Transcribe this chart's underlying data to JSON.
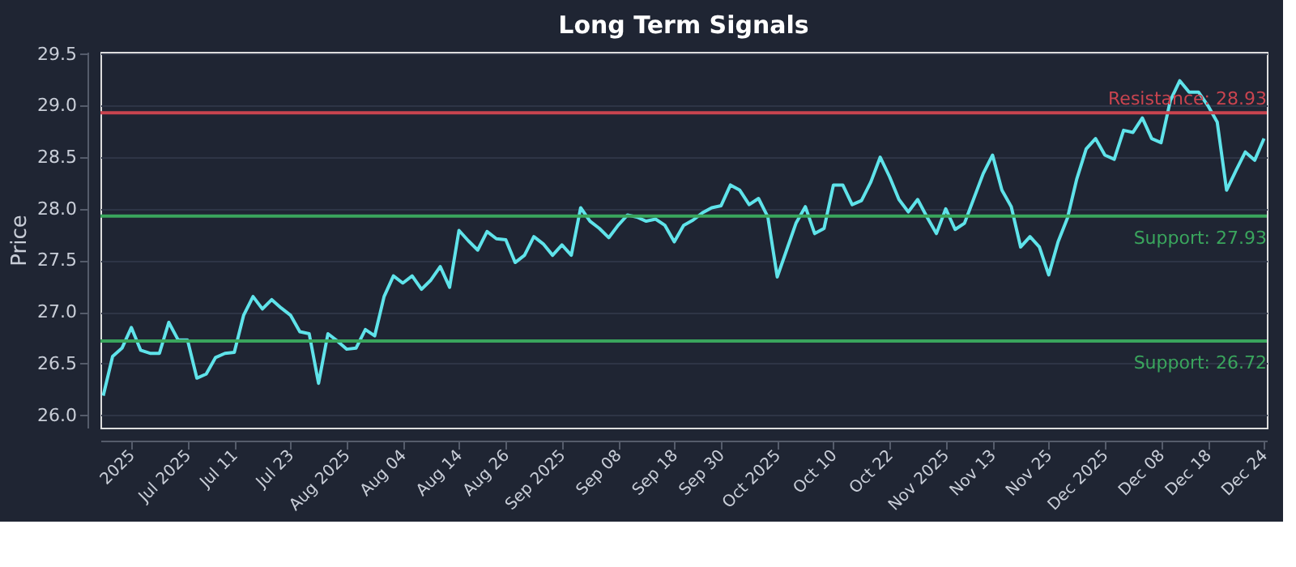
{
  "chart_data": {
    "type": "line",
    "title": "Long Term Signals",
    "ylabel": "Price",
    "categories": [
      null,
      null,
      null,
      "2025",
      null,
      null,
      null,
      null,
      null,
      "Jul 2025",
      null,
      null,
      null,
      null,
      "Jul 11",
      null,
      null,
      null,
      null,
      null,
      "Jul 23",
      null,
      null,
      null,
      null,
      null,
      "Aug 2025",
      null,
      null,
      null,
      null,
      null,
      "Aug 04",
      null,
      null,
      null,
      null,
      null,
      "Aug 14",
      null,
      null,
      null,
      null,
      "Aug 26",
      null,
      null,
      null,
      null,
      null,
      "Sep 2025",
      null,
      null,
      null,
      null,
      null,
      "Sep 08",
      null,
      null,
      null,
      null,
      null,
      "Sep 18",
      null,
      null,
      null,
      null,
      "Sep 30",
      null,
      null,
      null,
      null,
      null,
      "Oct 2025",
      null,
      null,
      null,
      null,
      null,
      "Oct 10",
      null,
      null,
      null,
      null,
      null,
      "Oct 22",
      null,
      null,
      null,
      null,
      null,
      "Nov 2025",
      null,
      null,
      null,
      null,
      "Nov 13",
      null,
      null,
      null,
      null,
      null,
      "Nov 25",
      null,
      null,
      null,
      null,
      null,
      "Dec 2025",
      null,
      null,
      null,
      null,
      null,
      "Dec 08",
      null,
      null,
      null,
      null,
      "Dec 18",
      null,
      null,
      null,
      null,
      null,
      "Dec 24"
    ],
    "series": [
      {
        "color": "#5fe3ea",
        "values": [
          26.19,
          26.57,
          26.65,
          26.85,
          26.63,
          26.6,
          26.6,
          26.9,
          26.73,
          26.73,
          26.36,
          26.4,
          26.56,
          26.6,
          26.61,
          26.97,
          27.15,
          27.03,
          27.12,
          27.04,
          26.97,
          26.81,
          26.79,
          26.31,
          26.79,
          26.72,
          26.64,
          26.65,
          26.83,
          26.77,
          27.15,
          27.35,
          27.28,
          27.35,
          27.22,
          27.31,
          27.44,
          27.24,
          27.79,
          27.69,
          27.6,
          27.78,
          27.71,
          27.7,
          27.48,
          27.55,
          27.73,
          27.66,
          27.55,
          27.65,
          27.55,
          28.01,
          27.88,
          27.81,
          27.72,
          27.84,
          27.94,
          27.92,
          27.88,
          27.9,
          27.84,
          27.68,
          27.84,
          27.89,
          27.96,
          28.01,
          28.03,
          28.23,
          28.18,
          28.04,
          28.1,
          27.92,
          27.34,
          27.6,
          27.86,
          28.02,
          27.76,
          27.81,
          28.23,
          28.23,
          28.04,
          28.08,
          28.26,
          28.5,
          28.31,
          28.09,
          27.97,
          28.09,
          27.92,
          27.76,
          28.0,
          27.8,
          27.86,
          28.1,
          28.34,
          28.52,
          28.18,
          28.02,
          27.63,
          27.73,
          27.63,
          27.36,
          27.68,
          27.91,
          28.29,
          28.58,
          28.68,
          28.52,
          28.48,
          28.76,
          28.74,
          28.88,
          28.68,
          28.64,
          29.05,
          29.24,
          29.13,
          29.13,
          29.0,
          28.84,
          28.18,
          28.37,
          28.55,
          28.47,
          28.68
        ]
      }
    ],
    "ylim": [
      25.88,
      29.52
    ],
    "yticks": [
      {
        "value": 26,
        "label": "26.0"
      },
      26.5,
      {
        "value": 27,
        "label": "27.0"
      },
      27.5,
      {
        "value": 28,
        "label": "28.0"
      },
      28.5,
      {
        "value": 29,
        "label": "29.0"
      },
      29.5
    ],
    "grid": "y",
    "ref_lines": [
      {
        "axis": "y",
        "value": 28.93,
        "label": "Resistance: 28.93",
        "color": "#c9444f"
      },
      {
        "axis": "y",
        "value": 27.93,
        "label": "Support: 27.93",
        "color": "#3aa55d"
      },
      {
        "axis": "y",
        "value": 26.72,
        "label": "Support: 26.72",
        "color": "#3aa55d"
      }
    ]
  }
}
